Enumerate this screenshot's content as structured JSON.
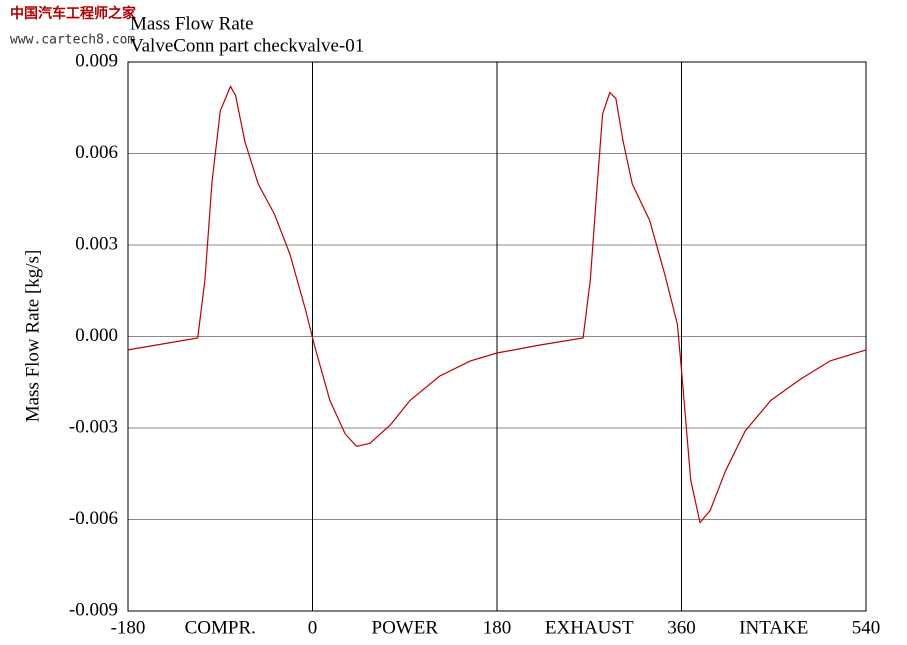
{
  "watermark": {
    "title": "中国汽车工程师之家",
    "url": "www.cartech8.com"
  },
  "chart_data": {
    "type": "line",
    "title": "Mass Flow Rate",
    "subtitle": "ValveConn part checkvalve-01",
    "y_label": "Mass Flow Rate [kg/s]",
    "phase_labels": [
      "COMPR.",
      "POWER",
      "EXHAUST",
      "INTAKE"
    ],
    "xlim": [
      -180,
      540
    ],
    "xticks": [
      -180,
      0,
      180,
      360,
      540
    ],
    "ylim": [
      -0.009,
      0.009
    ],
    "yticks": [
      0.009,
      0.006,
      0.003,
      {
        "value": 0,
        "label": "0.000"
      },
      -0.003,
      -0.006,
      -0.009
    ],
    "grid": true,
    "series": [
      {
        "color": "#c00000",
        "x": [
          -180,
          -112,
          -105,
          -98,
          -90,
          -80,
          -75,
          -66,
          -53,
          -37,
          -22,
          -7,
          2,
          17,
          32,
          43,
          56,
          76,
          95,
          124,
          154,
          180,
          222,
          264,
          271,
          278,
          283,
          290,
          296,
          303,
          312,
          329,
          344,
          356,
          360,
          369,
          378,
          388,
          403,
          422,
          447,
          476,
          505,
          540
        ],
        "values": [
          -0.00044,
          -5e-05,
          0.00185,
          0.0051,
          0.0074,
          0.0082,
          0.0079,
          0.0064,
          0.005,
          0.004,
          0.0027,
          0.0009,
          -0.0003,
          -0.0021,
          -0.0032,
          -0.0036,
          -0.0035,
          -0.0029,
          -0.0021,
          -0.0013,
          -0.0008,
          -0.00054,
          -0.00028,
          -5e-05,
          0.00185,
          0.0051,
          0.0073,
          0.008,
          0.0078,
          0.0064,
          0.005,
          0.0038,
          0.002,
          0.0004,
          -0.0011,
          -0.0047,
          -0.0061,
          -0.0057,
          -0.0044,
          -0.0031,
          -0.0021,
          -0.0014,
          -0.0008,
          -0.00044
        ]
      }
    ]
  }
}
